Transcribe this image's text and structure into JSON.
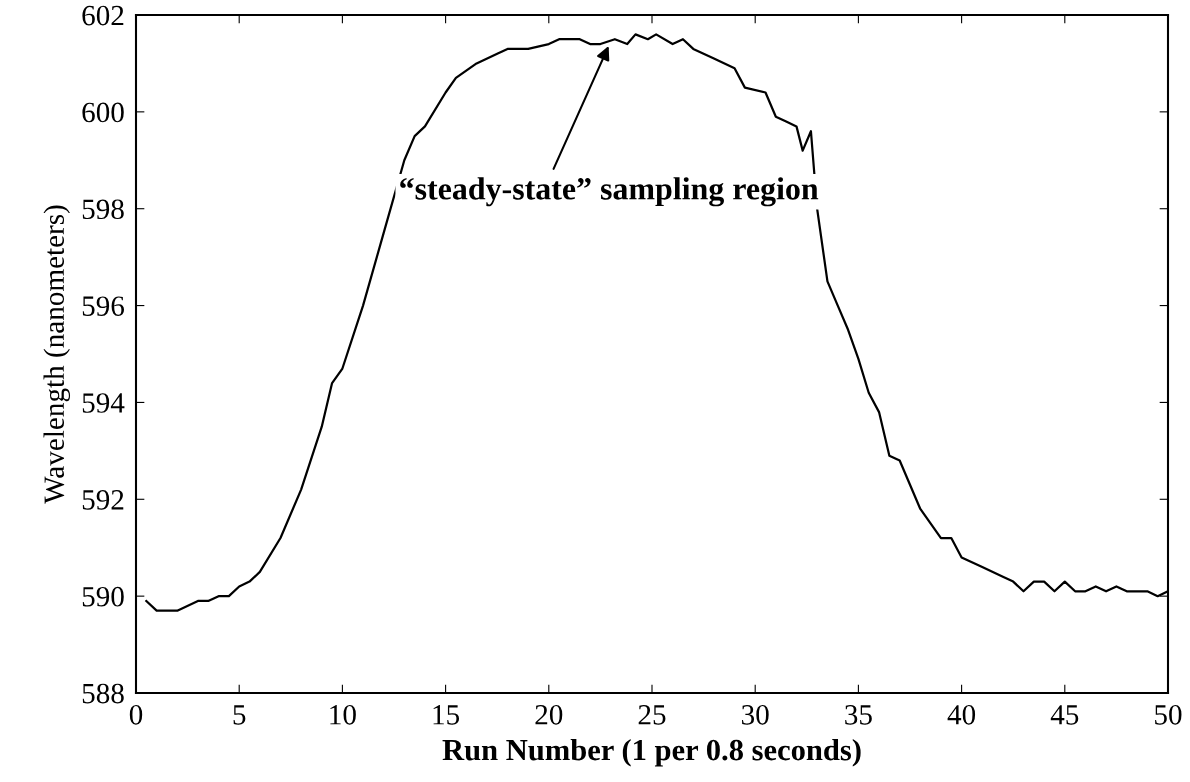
{
  "chart_data": {
    "type": "line",
    "xlabel": "Run Number (1 per 0.8 seconds)",
    "ylabel": "Wavelength (nanometers)",
    "x": [
      0.5,
      1,
      2,
      3,
      3.5,
      4,
      4.5,
      5,
      5.5,
      6,
      7,
      8,
      9,
      9.5,
      10,
      11,
      12,
      13,
      13.5,
      14,
      15,
      15.5,
      16.5,
      17.5,
      18,
      19,
      20,
      20.5,
      21.5,
      22,
      22.5,
      23.2,
      23.8,
      24.2,
      24.8,
      25.2,
      26,
      26.5,
      27,
      28,
      29,
      29.5,
      30.5,
      31,
      31.5,
      32,
      32.3,
      32.7,
      33,
      33.5,
      34,
      34.5,
      35,
      35.5,
      36,
      36.5,
      37,
      37.5,
      38,
      39,
      39.5,
      40,
      41,
      42,
      42.5,
      43,
      43.5,
      44,
      44.5,
      45,
      45.5,
      46,
      46.5,
      47,
      47.5,
      48,
      48.5,
      49,
      49.5,
      50
    ],
    "series": [
      {
        "color": "#000000",
        "values": [
          589.9,
          589.7,
          589.7,
          589.9,
          589.9,
          590.0,
          590.0,
          590.2,
          590.3,
          590.5,
          591.2,
          592.2,
          593.5,
          594.4,
          594.7,
          596.0,
          597.5,
          599.0,
          599.5,
          599.7,
          600.4,
          600.7,
          601.0,
          601.2,
          601.3,
          601.3,
          601.4,
          601.5,
          601.5,
          601.4,
          601.4,
          601.5,
          601.4,
          601.6,
          601.5,
          601.6,
          601.4,
          601.5,
          601.3,
          601.1,
          600.9,
          600.5,
          600.4,
          599.9,
          599.8,
          599.7,
          599.2,
          599.6,
          598.0,
          596.5,
          596.0,
          595.5,
          594.9,
          594.2,
          593.8,
          592.9,
          592.8,
          592.3,
          591.8,
          591.2,
          591.2,
          590.8,
          590.6,
          590.4,
          590.3,
          590.1,
          590.3,
          590.3,
          590.1,
          590.3,
          590.1,
          590.1,
          590.2,
          590.1,
          590.2,
          590.1,
          590.1,
          590.1,
          590.0,
          590.1
        ]
      }
    ],
    "xlim": [
      0,
      50
    ],
    "xticks": [
      0,
      5,
      10,
      15,
      20,
      25,
      30,
      35,
      40,
      45,
      50
    ],
    "ylim": [
      588,
      602
    ],
    "yticks": [
      588,
      590,
      592,
      594,
      596,
      598,
      600,
      602
    ],
    "grid": false,
    "legend": false,
    "marker": "none",
    "line_style": "solid",
    "annotations": [
      {
        "text": "“steady-state” sampling region",
        "x": 22.9,
        "y": 601.36
      }
    ]
  }
}
